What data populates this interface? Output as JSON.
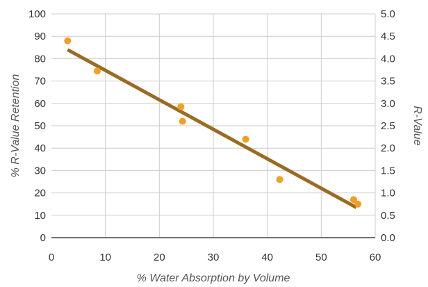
{
  "chart_data": {
    "type": "scatter",
    "xlabel": "% Water Absorption by Volume",
    "ylabel": "% R-Value Retention",
    "y2label": "R-Value",
    "xlim": [
      0,
      60
    ],
    "ylim": [
      0,
      100
    ],
    "y2lim": [
      0.0,
      5.0
    ],
    "x_ticks": [
      "0",
      "10",
      "20",
      "30",
      "40",
      "50",
      "60"
    ],
    "y_ticks": [
      "0",
      "10",
      "20",
      "30",
      "40",
      "50",
      "60",
      "70",
      "80",
      "90",
      "100"
    ],
    "y2_ticks": [
      "0.0",
      "0.5",
      "1.0",
      "1.5",
      "2.0",
      "2.5",
      "3.0",
      "3.5",
      "4.0",
      "4.5",
      "5.0"
    ],
    "grid": true,
    "points": [
      {
        "x": 3.0,
        "y": 88
      },
      {
        "x": 8.5,
        "y": 74.5
      },
      {
        "x": 24.0,
        "y": 58.5
      },
      {
        "x": 24.3,
        "y": 52
      },
      {
        "x": 36.0,
        "y": 44
      },
      {
        "x": 42.3,
        "y": 26
      },
      {
        "x": 56.0,
        "y": 17
      },
      {
        "x": 56.8,
        "y": 15
      }
    ],
    "trendline": {
      "x": [
        3.0,
        56.5
      ],
      "y": [
        84,
        13.5
      ]
    },
    "colors": {
      "points": "#f2a020",
      "trendline": "#9a6b22",
      "grid": "#cccccc",
      "axis": "#444444"
    }
  }
}
